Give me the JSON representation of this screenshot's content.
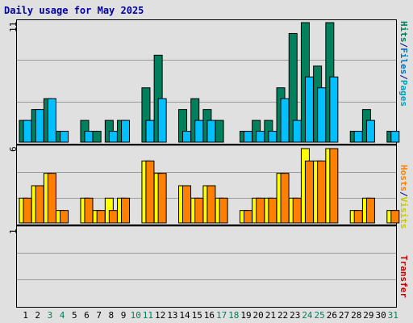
{
  "title": "Daily usage for May 2025",
  "colors": {
    "hits": "#00805c",
    "files": "#00c0ff",
    "pages": "#00a0c0",
    "visits": "#ffff00",
    "hosts": "#ff8000",
    "transfer": "#c00000",
    "background": "#e0e0e0"
  },
  "right_labels": {
    "top": [
      [
        "Hits",
        "hits"
      ],
      [
        "/",
        "slash"
      ],
      [
        "Files",
        "files"
      ],
      [
        "/",
        "slash"
      ],
      [
        "Pages",
        "pages"
      ]
    ],
    "middle": [
      [
        "Hosts",
        "hosts"
      ],
      [
        "/",
        "slash"
      ],
      [
        "Visits",
        "visits"
      ]
    ],
    "bottom": [
      [
        "Transfer",
        "transfer"
      ]
    ]
  },
  "chart_data": {
    "type": "bar",
    "x": [
      1,
      2,
      3,
      4,
      5,
      6,
      7,
      8,
      9,
      10,
      11,
      12,
      13,
      14,
      15,
      16,
      17,
      18,
      19,
      20,
      21,
      22,
      23,
      24,
      25,
      26,
      27,
      28,
      29,
      30,
      31
    ],
    "x_highlight": [
      3,
      4,
      10,
      11,
      17,
      18,
      24,
      25,
      31
    ],
    "panels": [
      {
        "name": "hits-files-pages",
        "scale_label": "11",
        "ymax": 11,
        "series": [
          {
            "name": "Hits",
            "color_key": "hits",
            "values": [
              2,
              3,
              4,
              1,
              0,
              2,
              1,
              2,
              2,
              0,
              5,
              8,
              0,
              3,
              4,
              3,
              2,
              0,
              1,
              2,
              2,
              5,
              10,
              11,
              7,
              11,
              0,
              1,
              3,
              0,
              1
            ]
          },
          {
            "name": "Files",
            "color_key": "files",
            "values": [
              2,
              3,
              4,
              1,
              0,
              1,
              0,
              1,
              2,
              0,
              2,
              4,
              0,
              1,
              2,
              2,
              0,
              0,
              1,
              1,
              1,
              4,
              2,
              6,
              5,
              6,
              0,
              1,
              2,
              0,
              1
            ]
          }
        ]
      },
      {
        "name": "visits-hosts",
        "scale_label": "6",
        "ymax": 6,
        "series": [
          {
            "name": "Visits",
            "color_key": "visits",
            "values": [
              2,
              3,
              4,
              1,
              0,
              2,
              1,
              2,
              2,
              0,
              5,
              4,
              0,
              3,
              2,
              3,
              2,
              0,
              1,
              2,
              2,
              4,
              2,
              6,
              5,
              6,
              0,
              1,
              2,
              0,
              1
            ]
          },
          {
            "name": "Hosts",
            "color_key": "hosts",
            "values": [
              2,
              3,
              4,
              1,
              0,
              2,
              1,
              1,
              2,
              0,
              5,
              4,
              0,
              3,
              2,
              3,
              2,
              0,
              1,
              2,
              2,
              4,
              2,
              5,
              5,
              6,
              0,
              1,
              2,
              0,
              1
            ]
          }
        ]
      },
      {
        "name": "transfer",
        "scale_label": "1",
        "ymax": 1,
        "series": [
          {
            "name": "Transfer",
            "color_key": "transfer",
            "values": [
              0,
              0,
              0,
              0,
              0,
              0,
              0,
              0,
              0,
              0,
              0,
              0,
              0,
              0,
              0,
              0,
              0,
              0,
              0,
              0,
              0,
              0,
              0,
              0,
              0,
              0,
              0,
              0,
              0,
              0,
              0
            ]
          }
        ]
      }
    ]
  }
}
